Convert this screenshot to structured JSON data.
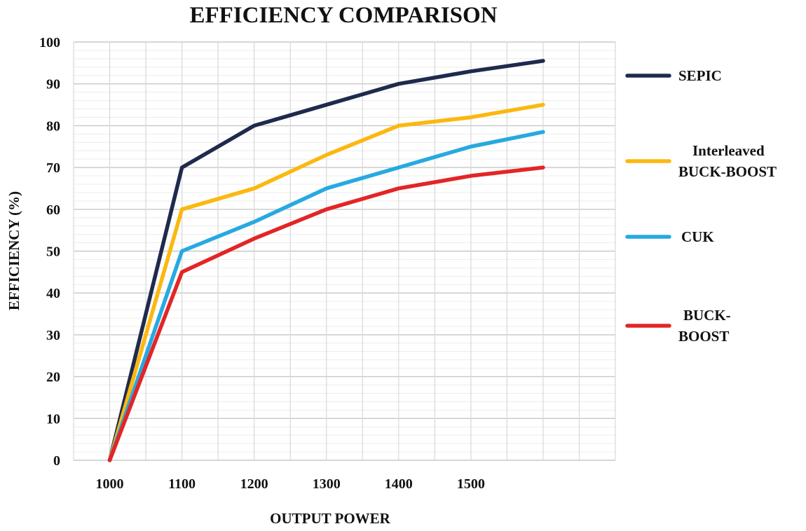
{
  "chart_data": {
    "type": "line",
    "title": "EFFICIENCY COMPARISON",
    "xlabel": "OUTPUT POWER",
    "ylabel": "EFFICIENCY (%)",
    "x": [
      1000,
      1100,
      1200,
      1300,
      1400,
      1500,
      1600
    ],
    "x_tick_labels": [
      "1000",
      "1100",
      "1200",
      "1300",
      "1400",
      "1500"
    ],
    "y_ticks": [
      0,
      10,
      20,
      30,
      40,
      50,
      60,
      70,
      80,
      90,
      100
    ],
    "xlim": [
      950,
      1700
    ],
    "ylim": [
      0,
      100
    ],
    "grid": true,
    "legend_position": "right",
    "series": [
      {
        "name": "SEPIC",
        "label_lines": [
          "SEPIC"
        ],
        "color": "#1f2a4d",
        "values": [
          0,
          70,
          80,
          85,
          90,
          93,
          95.5
        ]
      },
      {
        "name": "Interleaved BUCK-BOOST",
        "label_lines": [
          "Interleaved",
          "BUCK-BOOST"
        ],
        "color": "#fbb810",
        "values": [
          0,
          60,
          65,
          73,
          80,
          82,
          85
        ]
      },
      {
        "name": "CUK",
        "label_lines": [
          "CUK"
        ],
        "color": "#27a9e1",
        "values": [
          0,
          50,
          57,
          65,
          70,
          75,
          78.5
        ]
      },
      {
        "name": "BUCK-BOOST",
        "label_lines": [
          "BUCK-",
          "BOOST"
        ],
        "color": "#e32526",
        "values": [
          0,
          45,
          53,
          60,
          65,
          68,
          70
        ]
      }
    ]
  }
}
